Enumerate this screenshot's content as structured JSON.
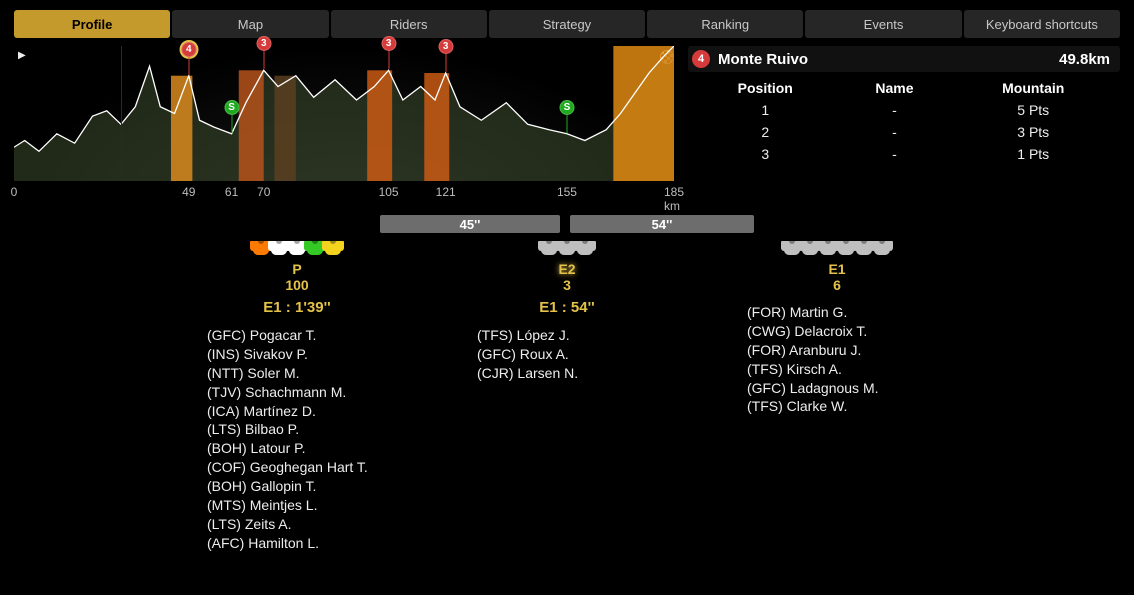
{
  "tabs": [
    "Profile",
    "Map",
    "Riders",
    "Strategy",
    "Ranking",
    "Events",
    "Keyboard shortcuts"
  ],
  "active_tab": 0,
  "profile": {
    "total_km": 185,
    "axis_ticks": [
      0,
      49,
      61,
      70,
      105,
      121,
      155,
      185
    ],
    "axis_unit": "km",
    "silhouette_points": [
      [
        0,
        0.25
      ],
      [
        3,
        0.3
      ],
      [
        7,
        0.22
      ],
      [
        12,
        0.35
      ],
      [
        17,
        0.28
      ],
      [
        22,
        0.48
      ],
      [
        26,
        0.52
      ],
      [
        30,
        0.42
      ],
      [
        34,
        0.55
      ],
      [
        38,
        0.85
      ],
      [
        41,
        0.55
      ],
      [
        45,
        0.5
      ],
      [
        49,
        0.78
      ],
      [
        52,
        0.45
      ],
      [
        56,
        0.4
      ],
      [
        61,
        0.35
      ],
      [
        65,
        0.58
      ],
      [
        70,
        0.82
      ],
      [
        74,
        0.7
      ],
      [
        79,
        0.78
      ],
      [
        84,
        0.62
      ],
      [
        90,
        0.75
      ],
      [
        96,
        0.6
      ],
      [
        101,
        0.7
      ],
      [
        105,
        0.82
      ],
      [
        109,
        0.6
      ],
      [
        114,
        0.7
      ],
      [
        118,
        0.6
      ],
      [
        121,
        0.8
      ],
      [
        125,
        0.55
      ],
      [
        131,
        0.45
      ],
      [
        138,
        0.58
      ],
      [
        144,
        0.42
      ],
      [
        150,
        0.38
      ],
      [
        155,
        0.35
      ],
      [
        160,
        0.3
      ],
      [
        166,
        0.38
      ],
      [
        170,
        0.5
      ],
      [
        174,
        0.65
      ],
      [
        178,
        0.8
      ],
      [
        182,
        0.92
      ],
      [
        185,
        1.0
      ]
    ],
    "vlines_km": [
      30
    ],
    "highlight_blocks": [
      {
        "from": 44,
        "to": 50,
        "color": "#d98a1e",
        "h": 0.78
      },
      {
        "from": 63,
        "to": 70,
        "color": "#b5521b",
        "h": 0.82
      },
      {
        "from": 73,
        "to": 79,
        "color": "#5a4020",
        "h": 0.78
      },
      {
        "from": 99,
        "to": 106,
        "color": "#c95a14",
        "h": 0.82
      },
      {
        "from": 115,
        "to": 122,
        "color": "#c95a14",
        "h": 0.8
      },
      {
        "from": 168,
        "to": 185,
        "color": "#e08a12",
        "h": 1.0
      }
    ],
    "markers": [
      {
        "km": 49,
        "type": "kom",
        "cat": "4",
        "highlight": true
      },
      {
        "km": 61,
        "type": "sprint",
        "cat": "S"
      },
      {
        "km": 70,
        "type": "kom",
        "cat": "3"
      },
      {
        "km": 105,
        "type": "kom",
        "cat": "3"
      },
      {
        "km": 121,
        "type": "kom",
        "cat": "3"
      },
      {
        "km": 155,
        "type": "sprint",
        "cat": "S"
      }
    ],
    "terrain_fill": "#3d4a2d",
    "terrain_line": "#ffffff"
  },
  "climb": {
    "cat": "4",
    "name": "Monte Ruivo",
    "distance": "49.8km",
    "columns": [
      "Position",
      "Name",
      "Mountain"
    ],
    "rows": [
      {
        "pos": "1",
        "name": "-",
        "pts": "5 Pts"
      },
      {
        "pos": "2",
        "name": "-",
        "pts": "3 Pts"
      },
      {
        "pos": "3",
        "name": "-",
        "pts": "1 Pts"
      }
    ]
  },
  "gap_bars": [
    {
      "label": "45''",
      "width": 180
    },
    {
      "label": "54''",
      "width": 184
    }
  ],
  "groups": [
    {
      "label": "P",
      "count": "100",
      "time": "E1 : 1'39''",
      "highlight": false,
      "jerseys": [
        "#ff7a00",
        "#ffffff",
        "#ffffff",
        "#34c924",
        "#f4d31f"
      ],
      "riders": [
        "(GFC) Pogacar T.",
        "(INS) Sivakov P.",
        "(NTT) Soler M.",
        "(TJV) Schachmann M.",
        "(ICA) Martínez D.",
        "(LTS) Bilbao P.",
        "(BOH) Latour P.",
        "(COF) Geoghegan Hart T.",
        "(BOH) Gallopin T.",
        "(MTS) Meintjes L.",
        "(LTS) Zeits A.",
        "(AFC) Hamilton L."
      ]
    },
    {
      "label": "E2",
      "count": "3",
      "time": "E1 : 54''",
      "highlight": true,
      "jerseys": [
        "#bfbfbf",
        "#bfbfbf",
        "#bfbfbf"
      ],
      "riders": [
        "(TFS) López J.",
        "(GFC) Roux A.",
        "(CJR) Larsen N."
      ]
    },
    {
      "label": "E1",
      "count": "6",
      "time": "",
      "highlight": false,
      "jerseys": [
        "#bfbfbf",
        "#bfbfbf",
        "#bfbfbf",
        "#bfbfbf",
        "#bfbfbf",
        "#bfbfbf"
      ],
      "riders": [
        "(FOR) Martin G.",
        "(CWG) Delacroix T.",
        "(FOR) Aranburu J.",
        "(TFS) Kirsch A.",
        "(GFC) Ladagnous M.",
        "(TFS) Clarke W."
      ]
    }
  ]
}
